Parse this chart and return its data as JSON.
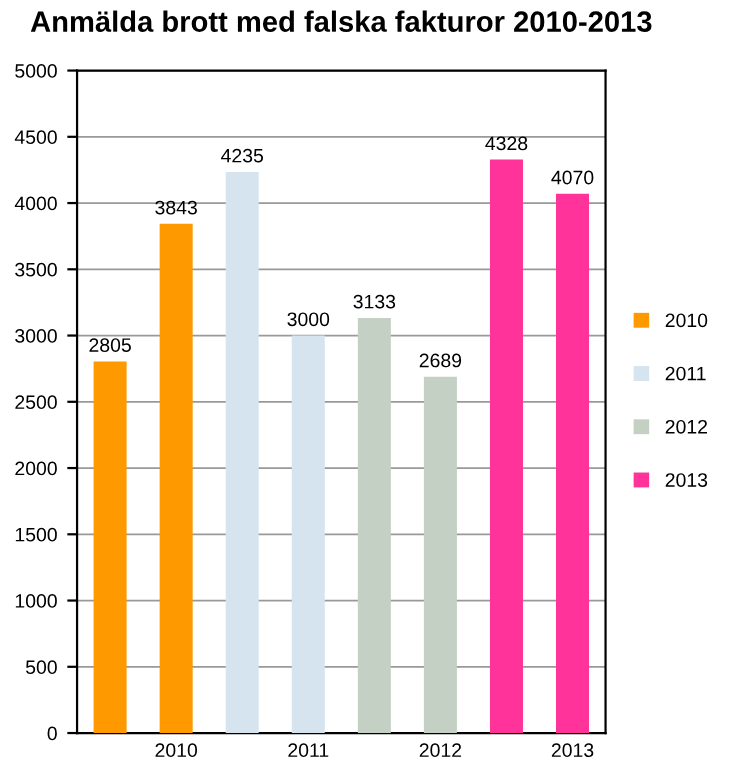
{
  "chart_data": {
    "type": "bar",
    "title": "Anmälda brott med falska fakturor 2010-2013",
    "categories": [
      null,
      "2010",
      null,
      "2011",
      null,
      "2012",
      null,
      "2013"
    ],
    "series": [
      {
        "name": "2010",
        "color": "#ff9900",
        "values": [
          2805,
          3843,
          null,
          null,
          null,
          null,
          null,
          null
        ]
      },
      {
        "name": "2011",
        "color": "#d6e4ef",
        "values": [
          null,
          null,
          4235,
          3000,
          null,
          null,
          null,
          null
        ]
      },
      {
        "name": "2012",
        "color": "#c4d0c4",
        "values": [
          null,
          null,
          null,
          null,
          3133,
          2689,
          null,
          null
        ]
      },
      {
        "name": "2013",
        "color": "#ff3399",
        "values": [
          null,
          null,
          null,
          null,
          null,
          null,
          4328,
          4070
        ]
      }
    ],
    "ylim": [
      0,
      5000
    ],
    "yticks": [
      0,
      500,
      1000,
      1500,
      2000,
      2500,
      3000,
      3500,
      4000,
      4500,
      5000
    ],
    "grid": "y",
    "legend": "right",
    "data_labels": true
  }
}
